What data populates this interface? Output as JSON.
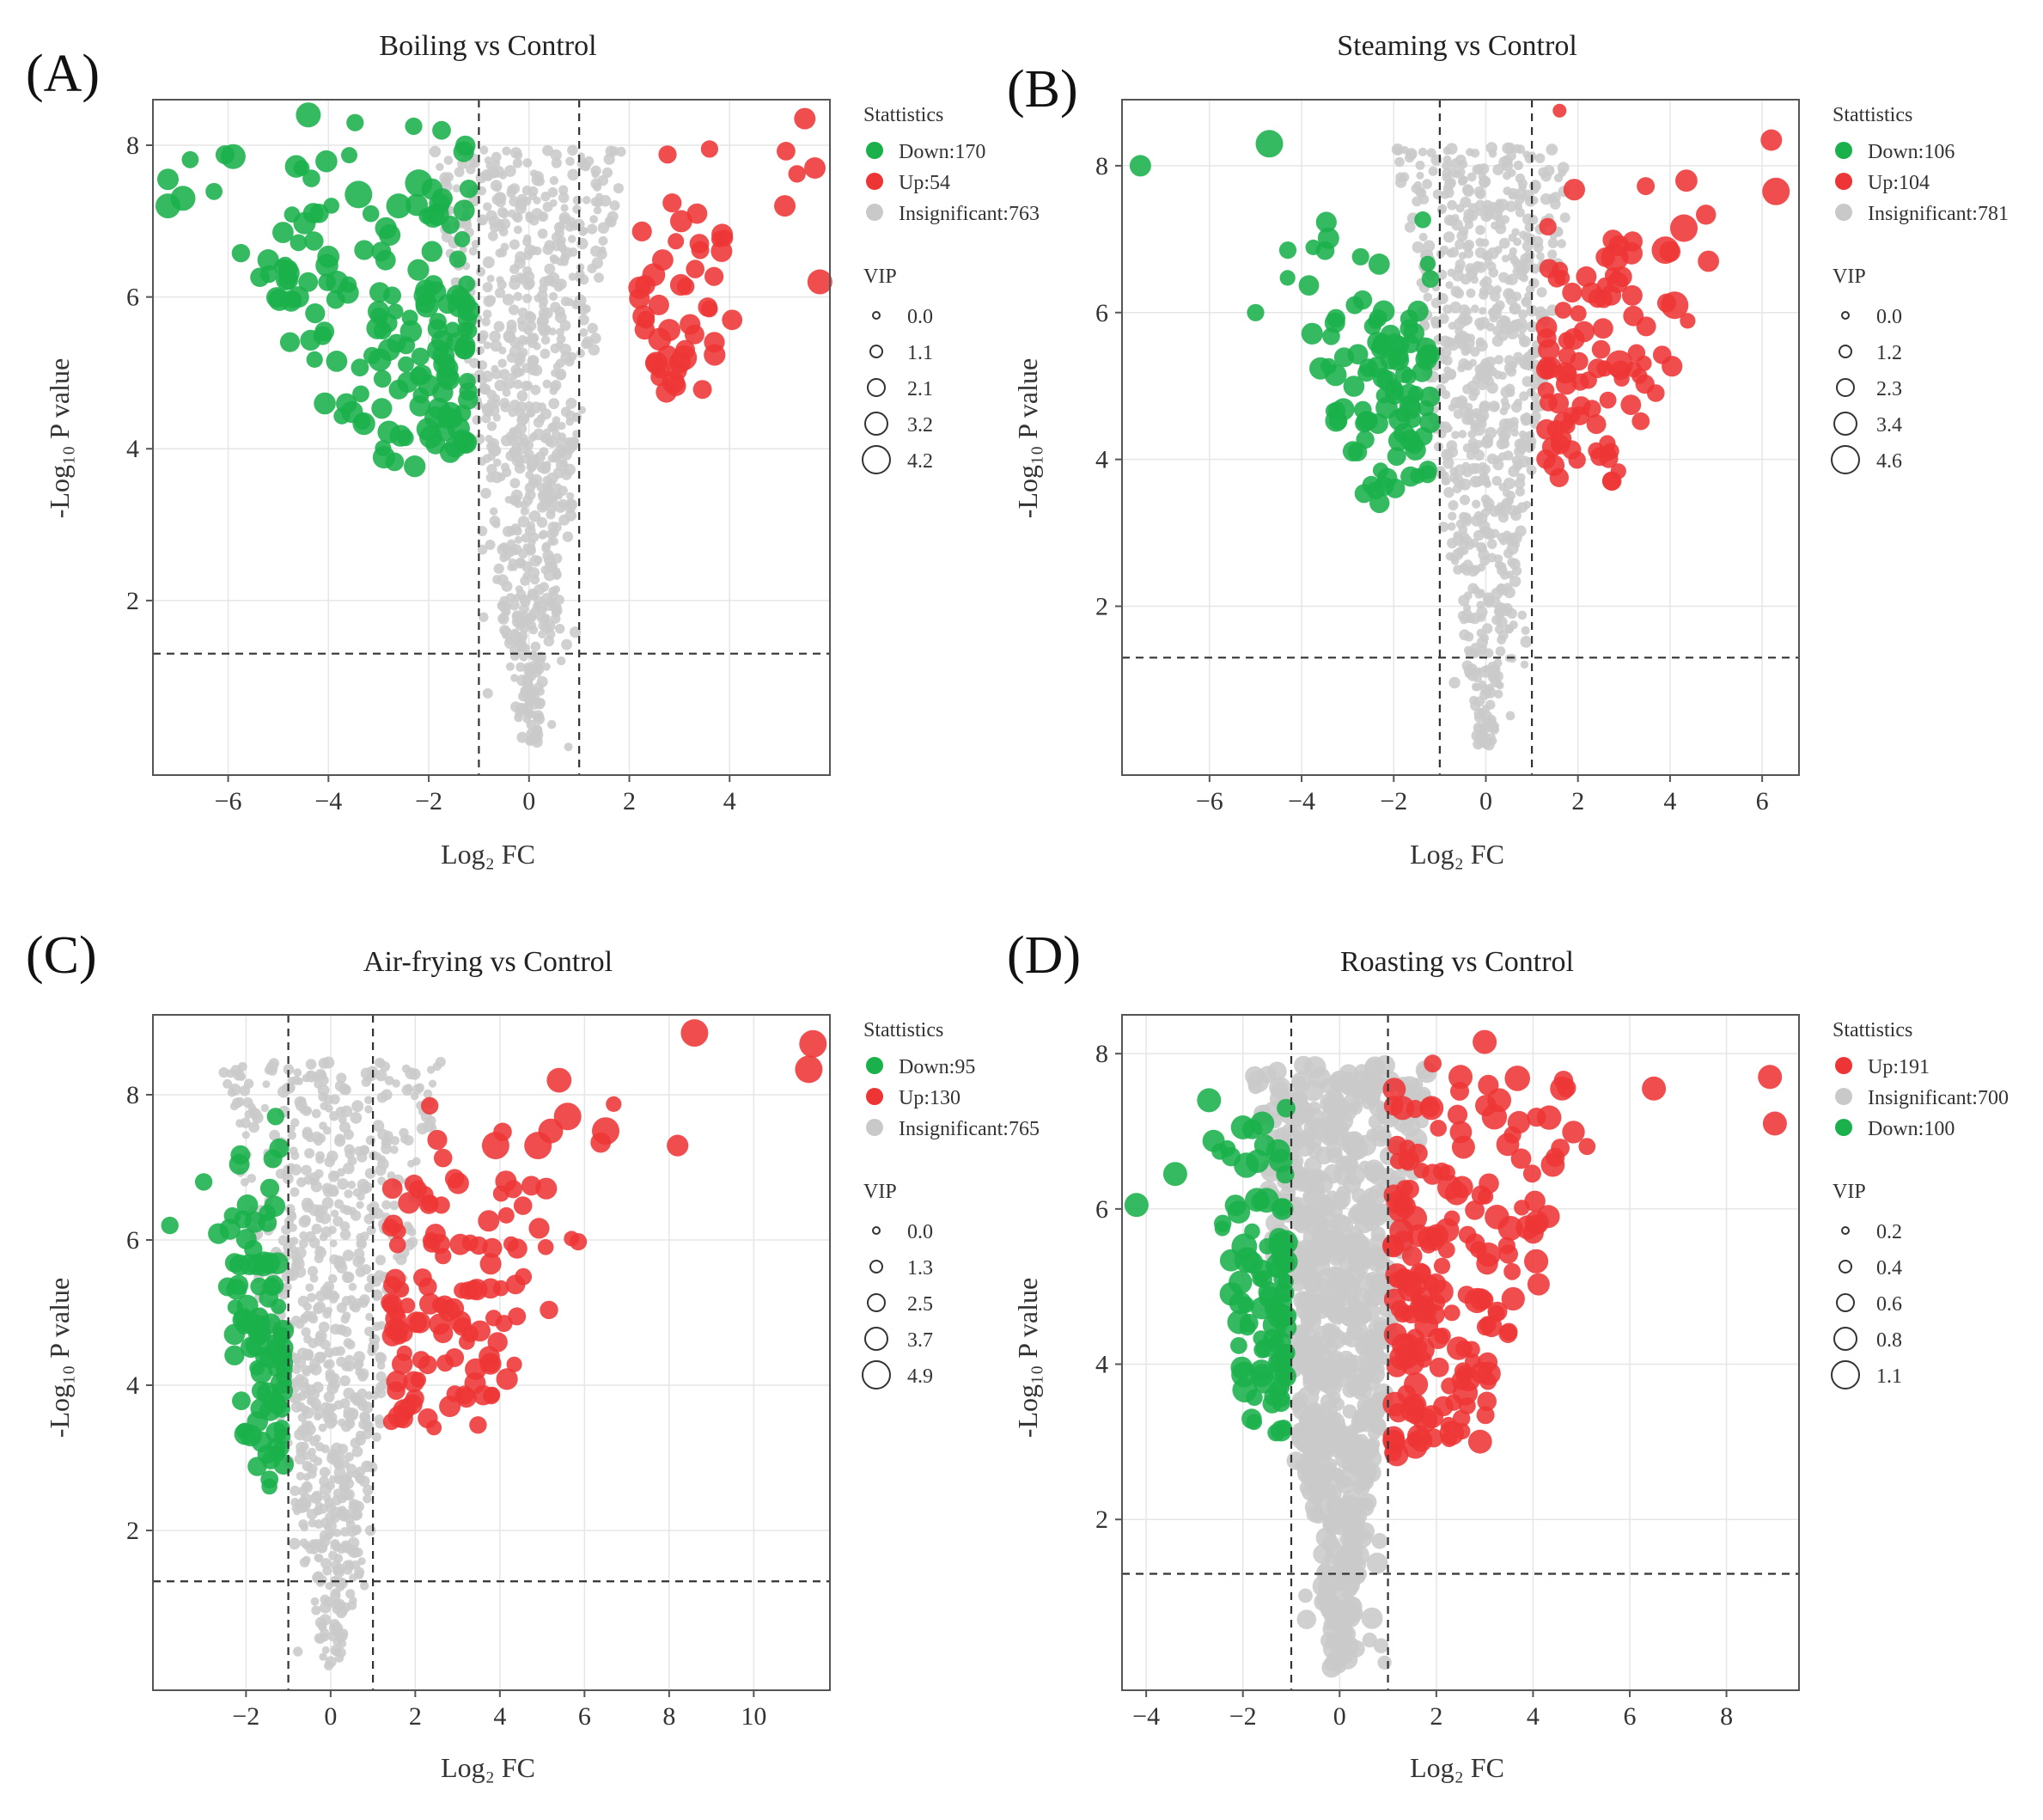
{
  "colors": {
    "down": "#1ab04b",
    "up": "#ee3535",
    "insignificant": "#c9c9c9"
  },
  "chart_data": [
    {
      "type": "scatter",
      "panel_label": "(A)",
      "title": "Boiling vs Control",
      "xlabel": "Log₂ FC",
      "ylabel": "-Log₁₀ P value",
      "xlim": [
        -7.5,
        6.0
      ],
      "ylim": [
        -0.3,
        8.6
      ],
      "xticks": [
        -6,
        -4,
        -2,
        0,
        2,
        4
      ],
      "yticks": [
        2,
        4,
        6,
        8
      ],
      "fc_threshold": [
        -1,
        1
      ],
      "p_threshold": 1.3,
      "legend_title": "Stattistics",
      "groups": [
        {
          "key": "down",
          "label": "Down:170",
          "count": 170
        },
        {
          "key": "up",
          "label": "Up:54",
          "count": 54
        },
        {
          "key": "insignificant",
          "label": "Insignificant:763",
          "count": 763
        }
      ],
      "vip_title": "VIP",
      "vip_sizes": [
        "0.0",
        "1.1",
        "2.1",
        "3.2",
        "4.2"
      ],
      "down_extent": {
        "x": [
          -7.3,
          -1.2
        ],
        "y": [
          3.7,
          8.4
        ]
      },
      "up_extent": {
        "x": [
          2.2,
          5.8
        ],
        "y": [
          4.7,
          8.3
        ]
      },
      "notable_points": [
        {
          "x": -7.2,
          "y": 7.2,
          "g": "down",
          "vip": 3.2
        },
        {
          "x": -6.9,
          "y": 7.3,
          "g": "down",
          "vip": 3.2
        },
        {
          "x": -7.2,
          "y": 7.55,
          "g": "down",
          "vip": 2.1
        },
        {
          "x": -5.9,
          "y": 7.85,
          "g": "down",
          "vip": 3.2
        },
        {
          "x": -4.4,
          "y": 8.4,
          "g": "down",
          "vip": 3.2
        },
        {
          "x": -2.3,
          "y": 8.25,
          "g": "down",
          "vip": 1.1
        },
        {
          "x": -2.6,
          "y": 7.2,
          "g": "down",
          "vip": 3.2
        },
        {
          "x": -2.2,
          "y": 7.5,
          "g": "down",
          "vip": 4.2
        },
        {
          "x": -3.4,
          "y": 7.35,
          "g": "down",
          "vip": 4.2
        },
        {
          "x": -4.6,
          "y": 6.0,
          "g": "down",
          "vip": 2.1
        },
        {
          "x": 5.5,
          "y": 8.35,
          "g": "up",
          "vip": 2.1
        },
        {
          "x": 5.7,
          "y": 7.7,
          "g": "up",
          "vip": 2.1
        },
        {
          "x": 3.6,
          "y": 7.95,
          "g": "up",
          "vip": 1.1
        },
        {
          "x": 5.8,
          "y": 6.2,
          "g": "up",
          "vip": 3.2
        },
        {
          "x": 5.1,
          "y": 7.2,
          "g": "up",
          "vip": 2.1
        },
        {
          "x": 3.1,
          "y": 5.2,
          "g": "up",
          "vip": 3.2
        }
      ]
    },
    {
      "type": "scatter",
      "panel_label": "(B)",
      "title": "Steaming vs Control",
      "xlabel": "Log₂ FC",
      "ylabel": "-Log₁₀ P value",
      "xlim": [
        -7.9,
        6.8
      ],
      "ylim": [
        -0.3,
        8.9
      ],
      "xticks": [
        -6,
        -4,
        -2,
        0,
        2,
        4,
        6
      ],
      "yticks": [
        2,
        4,
        6,
        8
      ],
      "fc_threshold": [
        -1,
        1
      ],
      "p_threshold": 1.3,
      "legend_title": "Stattistics",
      "groups": [
        {
          "key": "down",
          "label": "Down:106",
          "count": 106
        },
        {
          "key": "up",
          "label": "Up:104",
          "count": 104
        },
        {
          "key": "insignificant",
          "label": "Insignificant:781",
          "count": 781
        }
      ],
      "vip_title": "VIP",
      "vip_sizes": [
        "0.0",
        "1.2",
        "2.3",
        "3.4",
        "4.6"
      ],
      "down_extent": {
        "x": [
          -5.2,
          -1.2
        ],
        "y": [
          3.4,
          7.8
        ]
      },
      "up_extent": {
        "x": [
          1.3,
          6.0
        ],
        "y": [
          3.7,
          8.0
        ]
      },
      "notable_points": [
        {
          "x": -7.5,
          "y": 8.0,
          "g": "down",
          "vip": 2.3
        },
        {
          "x": -4.7,
          "y": 8.3,
          "g": "down",
          "vip": 4.6
        },
        {
          "x": -4.3,
          "y": 6.85,
          "g": "down",
          "vip": 1.2
        },
        {
          "x": -5.0,
          "y": 6.0,
          "g": "down",
          "vip": 1.2
        },
        {
          "x": 1.6,
          "y": 8.75,
          "g": "up",
          "vip": 0.5
        },
        {
          "x": 6.3,
          "y": 7.65,
          "g": "up",
          "vip": 4.6
        },
        {
          "x": 6.2,
          "y": 8.35,
          "g": "up",
          "vip": 2.3
        },
        {
          "x": 4.3,
          "y": 7.15,
          "g": "up",
          "vip": 4.6
        },
        {
          "x": 3.9,
          "y": 6.85,
          "g": "up",
          "vip": 4.6
        },
        {
          "x": 2.8,
          "y": 6.75,
          "g": "up",
          "vip": 4.6
        },
        {
          "x": 4.1,
          "y": 6.1,
          "g": "up",
          "vip": 4.6
        },
        {
          "x": 2.9,
          "y": 5.3,
          "g": "up",
          "vip": 4.6
        }
      ]
    },
    {
      "type": "scatter",
      "panel_label": "(C)",
      "title": "Air-frying vs Control",
      "xlabel": "Log₂ FC",
      "ylabel": "-Log₁₀ P value",
      "xlim": [
        -4.2,
        11.8
      ],
      "ylim": [
        -0.2,
        9.1
      ],
      "xticks": [
        -2,
        0,
        2,
        4,
        6,
        8,
        10
      ],
      "yticks": [
        2,
        4,
        6,
        8
      ],
      "fc_threshold": [
        -1,
        1
      ],
      "p_threshold": 1.3,
      "legend_title": "Stattistics",
      "groups": [
        {
          "key": "down",
          "label": "Down:95",
          "count": 95
        },
        {
          "key": "up",
          "label": "Up:130",
          "count": 130
        },
        {
          "key": "insignificant",
          "label": "Insignificant:765",
          "count": 765
        }
      ],
      "vip_title": "VIP",
      "vip_sizes": [
        "0.0",
        "1.3",
        "2.5",
        "3.7",
        "4.9"
      ],
      "down_extent": {
        "x": [
          -3.2,
          -1.1
        ],
        "y": [
          2.6,
          7.7
        ]
      },
      "up_extent": {
        "x": [
          1.4,
          8.2
        ],
        "y": [
          3.4,
          8.3
        ]
      },
      "notable_points": [
        {
          "x": -3.8,
          "y": 6.2,
          "g": "down",
          "vip": 1.3
        },
        {
          "x": -3.0,
          "y": 6.8,
          "g": "down",
          "vip": 1.3
        },
        {
          "x": -1.3,
          "y": 7.7,
          "g": "down",
          "vip": 1.3
        },
        {
          "x": 8.6,
          "y": 8.85,
          "g": "up",
          "vip": 4.9
        },
        {
          "x": 11.4,
          "y": 8.7,
          "g": "up",
          "vip": 4.9
        },
        {
          "x": 11.3,
          "y": 8.35,
          "g": "up",
          "vip": 4.9
        },
        {
          "x": 5.4,
          "y": 8.2,
          "g": "up",
          "vip": 3.7
        },
        {
          "x": 5.6,
          "y": 7.7,
          "g": "up",
          "vip": 4.9
        },
        {
          "x": 6.5,
          "y": 7.5,
          "g": "up",
          "vip": 4.9
        },
        {
          "x": 5.2,
          "y": 7.5,
          "g": "up",
          "vip": 3.7
        },
        {
          "x": 4.9,
          "y": 7.3,
          "g": "up",
          "vip": 4.9
        },
        {
          "x": 8.2,
          "y": 7.3,
          "g": "up",
          "vip": 2.5
        },
        {
          "x": 3.9,
          "y": 7.3,
          "g": "up",
          "vip": 4.9
        }
      ]
    },
    {
      "type": "scatter",
      "panel_label": "(D)",
      "title": "Roasting vs Control",
      "xlabel": "Log₂ FC",
      "ylabel": "-Log₁₀ P value",
      "xlim": [
        -4.5,
        9.5
      ],
      "ylim": [
        -0.2,
        8.5
      ],
      "xticks": [
        -4,
        -2,
        0,
        2,
        4,
        6,
        8
      ],
      "yticks": [
        2,
        4,
        6,
        8
      ],
      "fc_threshold": [
        -1,
        1
      ],
      "p_threshold": 1.3,
      "legend_title": "Stattistics",
      "groups": [
        {
          "key": "up",
          "label": "Up:191",
          "count": 191
        },
        {
          "key": "insignificant",
          "label": "Insignificant:700",
          "count": 700
        },
        {
          "key": "down",
          "label": "Down:100",
          "count": 100
        }
      ],
      "vip_title": "VIP",
      "vip_sizes": [
        "0.2",
        "0.4",
        "0.6",
        "0.8",
        "1.1"
      ],
      "down_extent": {
        "x": [
          -3.0,
          -1.1
        ],
        "y": [
          2.9,
          7.4
        ]
      },
      "up_extent": {
        "x": [
          1.1,
          6.0
        ],
        "y": [
          2.8,
          8.2
        ]
      },
      "notable_points": [
        {
          "x": -4.2,
          "y": 6.05,
          "g": "down",
          "vip": 0.8
        },
        {
          "x": -3.4,
          "y": 6.45,
          "g": "down",
          "vip": 0.8
        },
        {
          "x": -2.7,
          "y": 7.4,
          "g": "down",
          "vip": 0.8
        },
        {
          "x": -2.0,
          "y": 7.05,
          "g": "down",
          "vip": 0.8
        },
        {
          "x": -1.6,
          "y": 7.1,
          "g": "down",
          "vip": 0.8
        },
        {
          "x": 3.0,
          "y": 8.15,
          "g": "up",
          "vip": 0.8
        },
        {
          "x": 8.9,
          "y": 7.7,
          "g": "up",
          "vip": 0.8
        },
        {
          "x": 9.0,
          "y": 7.1,
          "g": "up",
          "vip": 0.8
        },
        {
          "x": 6.5,
          "y": 7.55,
          "g": "up",
          "vip": 0.8
        },
        {
          "x": 2.5,
          "y": 7.7,
          "g": "up",
          "vip": 0.8
        },
        {
          "x": 4.6,
          "y": 7.55,
          "g": "up",
          "vip": 0.8
        },
        {
          "x": 1.3,
          "y": 7.3,
          "g": "up",
          "vip": 0.8
        },
        {
          "x": 1.9,
          "y": 7.3,
          "g": "up",
          "vip": 0.8
        },
        {
          "x": 3.3,
          "y": 7.4,
          "g": "up",
          "vip": 0.8
        }
      ]
    }
  ]
}
